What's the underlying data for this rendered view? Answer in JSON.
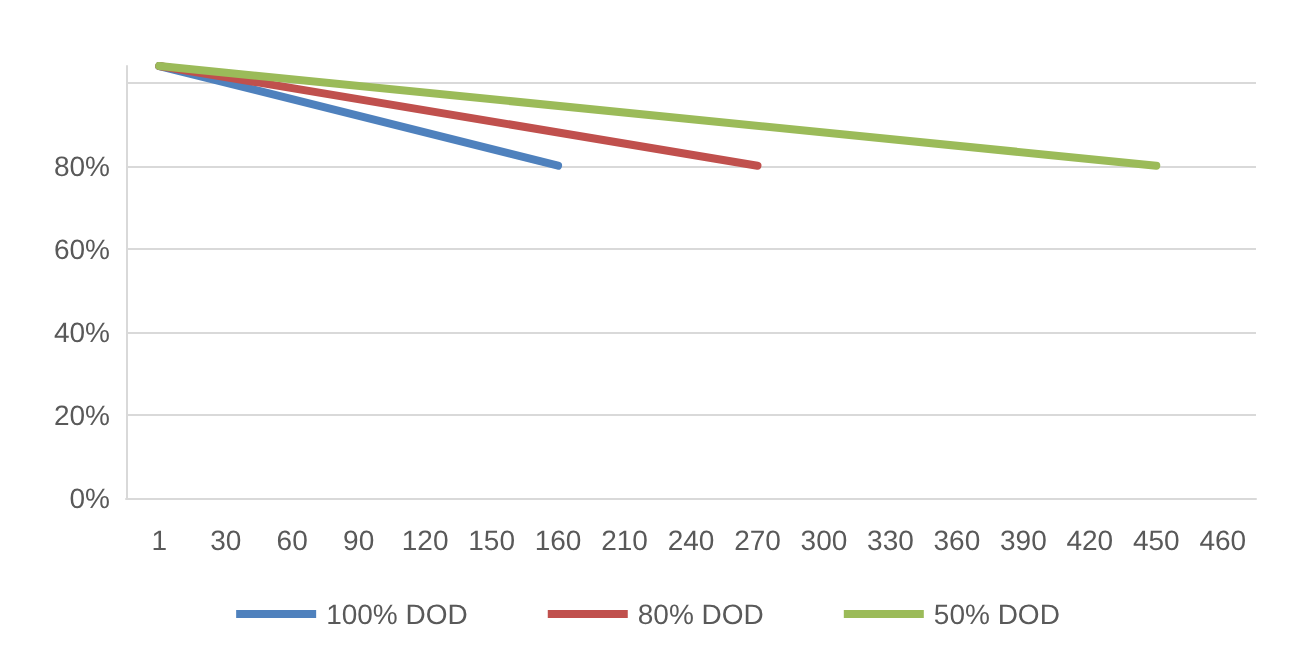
{
  "chart_data": {
    "type": "line",
    "categories": [
      "1",
      "30",
      "60",
      "90",
      "120",
      "150",
      "160",
      "210",
      "240",
      "270",
      "300",
      "330",
      "360",
      "390",
      "420",
      "450",
      "460"
    ],
    "series": [
      {
        "name": "100% DOD",
        "color": "#4f81bd",
        "values": [
          104,
          null,
          null,
          null,
          null,
          null,
          80,
          null,
          null,
          null,
          null,
          null,
          null,
          null,
          null,
          null,
          null
        ]
      },
      {
        "name": "80% DOD",
        "color": "#c0504d",
        "values": [
          104,
          null,
          null,
          null,
          null,
          null,
          null,
          null,
          null,
          80,
          null,
          null,
          null,
          null,
          null,
          null,
          null
        ]
      },
      {
        "name": "50% DOD",
        "color": "#9bbb59",
        "values": [
          104,
          null,
          null,
          null,
          null,
          null,
          null,
          null,
          null,
          null,
          null,
          null,
          null,
          null,
          null,
          80,
          null
        ]
      }
    ],
    "yticks": [
      {
        "value": 0,
        "label": "0%"
      },
      {
        "value": 20,
        "label": "20%"
      },
      {
        "value": 40,
        "label": "40%"
      },
      {
        "value": 60,
        "label": "60%"
      },
      {
        "value": 80,
        "label": "80%"
      },
      {
        "value": 100,
        "label": null
      }
    ],
    "ylim": [
      0,
      104
    ],
    "grid": "y",
    "legend": "bottom",
    "marker": "none",
    "line_style": "solid"
  }
}
